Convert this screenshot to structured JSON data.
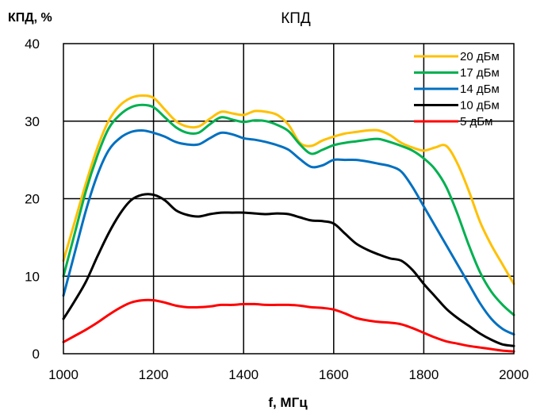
{
  "chart_data": {
    "type": "line",
    "title": "КПД",
    "ylabel": "КПД, %",
    "xlabel": "f, МГц",
    "xlim": [
      1000,
      2000
    ],
    "ylim": [
      0,
      40
    ],
    "x_ticks": [
      1000,
      1200,
      1400,
      1600,
      1800,
      2000
    ],
    "y_ticks": [
      0,
      10,
      20,
      30,
      40
    ],
    "grid": true,
    "legend_position": "top-right",
    "series": [
      {
        "name": "20 дБм",
        "color": "#FFC000",
        "x": [
          1000,
          1025,
          1050,
          1075,
          1100,
          1125,
          1150,
          1175,
          1200,
          1225,
          1250,
          1275,
          1300,
          1325,
          1350,
          1375,
          1400,
          1425,
          1450,
          1475,
          1500,
          1525,
          1550,
          1575,
          1600,
          1625,
          1650,
          1675,
          1700,
          1725,
          1750,
          1775,
          1800,
          1825,
          1850,
          1875,
          1900,
          1925,
          1950,
          1975,
          2000
        ],
        "y": [
          12,
          17,
          22,
          26.5,
          30,
          32,
          33,
          33.3,
          33,
          31.5,
          30,
          29.3,
          29.3,
          30.3,
          31.2,
          31,
          30.8,
          31.3,
          31.2,
          30.8,
          29.5,
          27.2,
          26.8,
          27.5,
          28,
          28.4,
          28.6,
          28.8,
          28.8,
          28.2,
          27.2,
          26.6,
          26.2,
          26.6,
          26.8,
          24.5,
          21,
          17,
          14,
          11.5,
          9
        ]
      },
      {
        "name": "17 дБм",
        "color": "#00B050",
        "x": [
          1000,
          1025,
          1050,
          1075,
          1100,
          1125,
          1150,
          1175,
          1200,
          1225,
          1250,
          1275,
          1300,
          1325,
          1350,
          1375,
          1400,
          1425,
          1450,
          1475,
          1500,
          1525,
          1550,
          1575,
          1600,
          1625,
          1650,
          1675,
          1700,
          1725,
          1750,
          1775,
          1800,
          1825,
          1850,
          1875,
          1900,
          1925,
          1950,
          1975,
          2000
        ],
        "y": [
          10,
          15.5,
          21,
          25.5,
          29,
          30.8,
          31.8,
          32.1,
          31.8,
          30.5,
          29.2,
          28.5,
          28.5,
          29.6,
          30.5,
          30.2,
          29.9,
          30.1,
          30,
          29.5,
          28.7,
          27,
          25.8,
          26.3,
          26.9,
          27.2,
          27.4,
          27.6,
          27.7,
          27.3,
          26.8,
          26.2,
          25.2,
          23.8,
          21.5,
          18,
          14,
          10.5,
          8,
          6.3,
          5
        ]
      },
      {
        "name": "14 дБм",
        "color": "#0070C0",
        "x": [
          1000,
          1025,
          1050,
          1075,
          1100,
          1125,
          1150,
          1175,
          1200,
          1225,
          1250,
          1275,
          1300,
          1325,
          1350,
          1375,
          1400,
          1425,
          1450,
          1475,
          1500,
          1525,
          1550,
          1575,
          1600,
          1625,
          1650,
          1675,
          1700,
          1725,
          1750,
          1775,
          1800,
          1825,
          1850,
          1875,
          1900,
          1925,
          1950,
          1975,
          2000
        ],
        "y": [
          7.5,
          13,
          18.5,
          23,
          26.2,
          27.8,
          28.6,
          28.8,
          28.5,
          28,
          27.3,
          27,
          27,
          27.8,
          28.5,
          28.3,
          27.8,
          27.6,
          27.3,
          26.9,
          26.3,
          25.1,
          24.1,
          24.3,
          25,
          25,
          25,
          24.8,
          24.5,
          24.2,
          23.5,
          21.5,
          19,
          16.5,
          14,
          11.5,
          9,
          6.5,
          4.5,
          3.2,
          2.5
        ]
      },
      {
        "name": "10 дБм",
        "color": "#000000",
        "x": [
          1000,
          1025,
          1050,
          1075,
          1100,
          1125,
          1150,
          1175,
          1200,
          1225,
          1250,
          1275,
          1300,
          1325,
          1350,
          1375,
          1400,
          1425,
          1450,
          1475,
          1500,
          1525,
          1550,
          1575,
          1600,
          1625,
          1650,
          1675,
          1700,
          1725,
          1750,
          1775,
          1800,
          1825,
          1850,
          1875,
          1900,
          1925,
          1950,
          1975,
          2000
        ],
        "y": [
          4.5,
          6.8,
          9.3,
          12.5,
          15.5,
          18,
          19.8,
          20.5,
          20.5,
          19.8,
          18.5,
          17.9,
          17.7,
          18,
          18.2,
          18.2,
          18.2,
          18.1,
          18,
          18.1,
          18,
          17.6,
          17.2,
          17.1,
          16.8,
          15.5,
          14.2,
          13.4,
          12.8,
          12.3,
          12,
          10.8,
          9,
          7.4,
          5.8,
          4.6,
          3.6,
          2.6,
          1.8,
          1.2,
          1
        ]
      },
      {
        "name": "5 дБм",
        "color": "#FF0000",
        "x": [
          1000,
          1025,
          1050,
          1075,
          1100,
          1125,
          1150,
          1175,
          1200,
          1225,
          1250,
          1275,
          1300,
          1325,
          1350,
          1375,
          1400,
          1425,
          1450,
          1475,
          1500,
          1525,
          1550,
          1575,
          1600,
          1625,
          1650,
          1675,
          1700,
          1725,
          1750,
          1775,
          1800,
          1825,
          1850,
          1875,
          1900,
          1925,
          1950,
          1975,
          2000
        ],
        "y": [
          1.5,
          2.3,
          3.1,
          4,
          5,
          5.9,
          6.6,
          6.9,
          6.9,
          6.6,
          6.2,
          6,
          6,
          6.1,
          6.3,
          6.3,
          6.4,
          6.4,
          6.3,
          6.3,
          6.3,
          6.2,
          6,
          5.9,
          5.7,
          5.2,
          4.6,
          4.3,
          4.1,
          4,
          3.8,
          3.3,
          2.7,
          2.1,
          1.6,
          1.3,
          1,
          0.8,
          0.6,
          0.4,
          0.3
        ]
      }
    ]
  }
}
